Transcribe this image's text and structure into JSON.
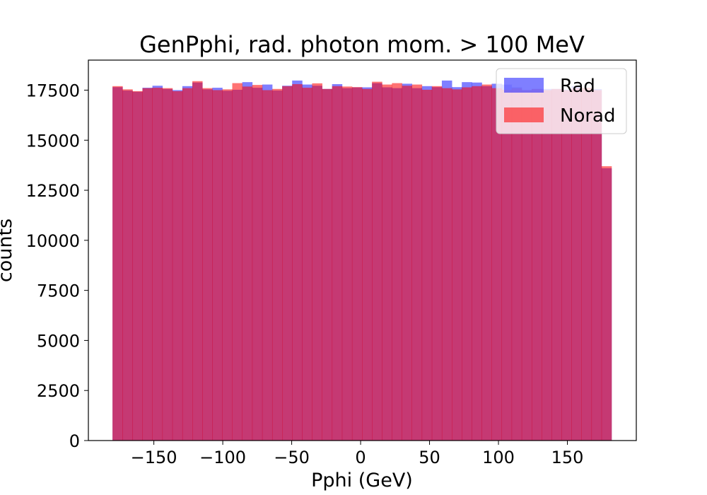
{
  "chart_data": {
    "type": "bar",
    "title": "GenPphi, rad. photon mom. > 100 MeV",
    "xlabel": "Pphi (GeV)",
    "ylabel": "counts",
    "xlim": [
      -197.5,
      200
    ],
    "ylim": [
      0,
      19000
    ],
    "bin_edges_range": [
      -180,
      182
    ],
    "bin_count": 50,
    "xticks": [
      -150,
      -100,
      -50,
      0,
      50,
      100,
      150
    ],
    "xtick_labels": [
      "−150",
      "−100",
      "−50",
      "0",
      "50",
      "100",
      "150"
    ],
    "yticks": [
      0,
      2500,
      5000,
      7500,
      10000,
      12500,
      15000,
      17500
    ],
    "ytick_labels": [
      "0",
      "2500",
      "5000",
      "7500",
      "10000",
      "12500",
      "15000",
      "17500"
    ],
    "grid": false,
    "legend_position": "top-right",
    "series": [
      {
        "name": "Rad",
        "color": "#0000ff",
        "alpha": 0.5,
        "values": [
          17650,
          17480,
          17420,
          17620,
          17720,
          17560,
          17500,
          17700,
          17880,
          17540,
          17620,
          17470,
          17520,
          17900,
          17620,
          17780,
          17480,
          17720,
          17980,
          17780,
          17720,
          17560,
          17800,
          17600,
          17640,
          17640,
          17850,
          17640,
          17600,
          17820,
          17600,
          17700,
          17650,
          17980,
          17650,
          17900,
          17880,
          17700,
          17820,
          17780,
          17640,
          17500,
          17560,
          17560,
          17560,
          17520,
          17700,
          17500,
          17550,
          13600
        ]
      },
      {
        "name": "Norad",
        "color": "#ff0000",
        "alpha": 0.55,
        "values": [
          17700,
          17540,
          17450,
          17600,
          17620,
          17600,
          17450,
          17600,
          17950,
          17600,
          17500,
          17540,
          17850,
          17680,
          17760,
          17500,
          17560,
          17700,
          17800,
          17620,
          17840,
          17560,
          17700,
          17680,
          17650,
          17560,
          17920,
          17780,
          17850,
          17720,
          17780,
          17520,
          17700,
          17600,
          17540,
          17640,
          17700,
          17780,
          17600,
          17520,
          17600,
          17500,
          17560,
          17500,
          17560,
          17500,
          17600,
          17620,
          17500,
          13700
        ]
      }
    ]
  }
}
